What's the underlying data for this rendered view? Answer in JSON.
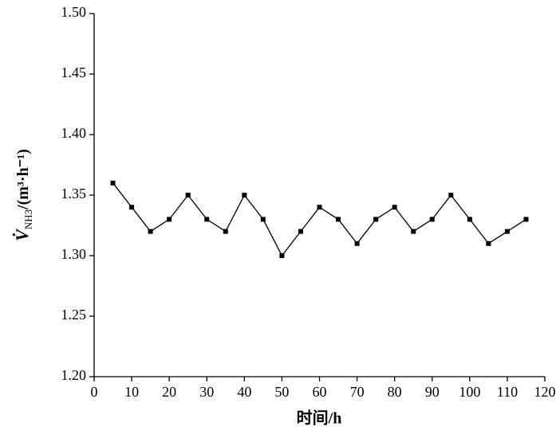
{
  "chart_data": {
    "type": "line",
    "xlabel": "时间/h",
    "ylabel": {
      "main": "V̇",
      "sub": "NH3",
      "rest": "/(m³·h⁻¹)"
    },
    "x": [
      5,
      10,
      15,
      20,
      25,
      30,
      35,
      40,
      45,
      50,
      55,
      60,
      65,
      70,
      75,
      80,
      85,
      90,
      95,
      100,
      105,
      110,
      115
    ],
    "values": [
      1.36,
      1.34,
      1.32,
      1.33,
      1.35,
      1.33,
      1.32,
      1.35,
      1.33,
      1.3,
      1.32,
      1.34,
      1.33,
      1.31,
      1.33,
      1.34,
      1.32,
      1.33,
      1.35,
      1.33,
      1.31,
      1.32,
      1.33
    ],
    "color": "#000000",
    "xlim": [
      0,
      120
    ],
    "xticks": [
      0,
      10,
      20,
      30,
      40,
      50,
      60,
      70,
      80,
      90,
      100,
      110,
      120
    ],
    "ylim": [
      1.2,
      1.5
    ],
    "yticks": [
      {
        "value": 1.2,
        "label": "1.20"
      },
      1.25,
      {
        "value": 1.3,
        "label": "1.30"
      },
      1.35,
      {
        "value": 1.4,
        "label": "1.40"
      },
      1.45,
      {
        "value": 1.5,
        "label": "1.50"
      }
    ],
    "grid": false
  }
}
